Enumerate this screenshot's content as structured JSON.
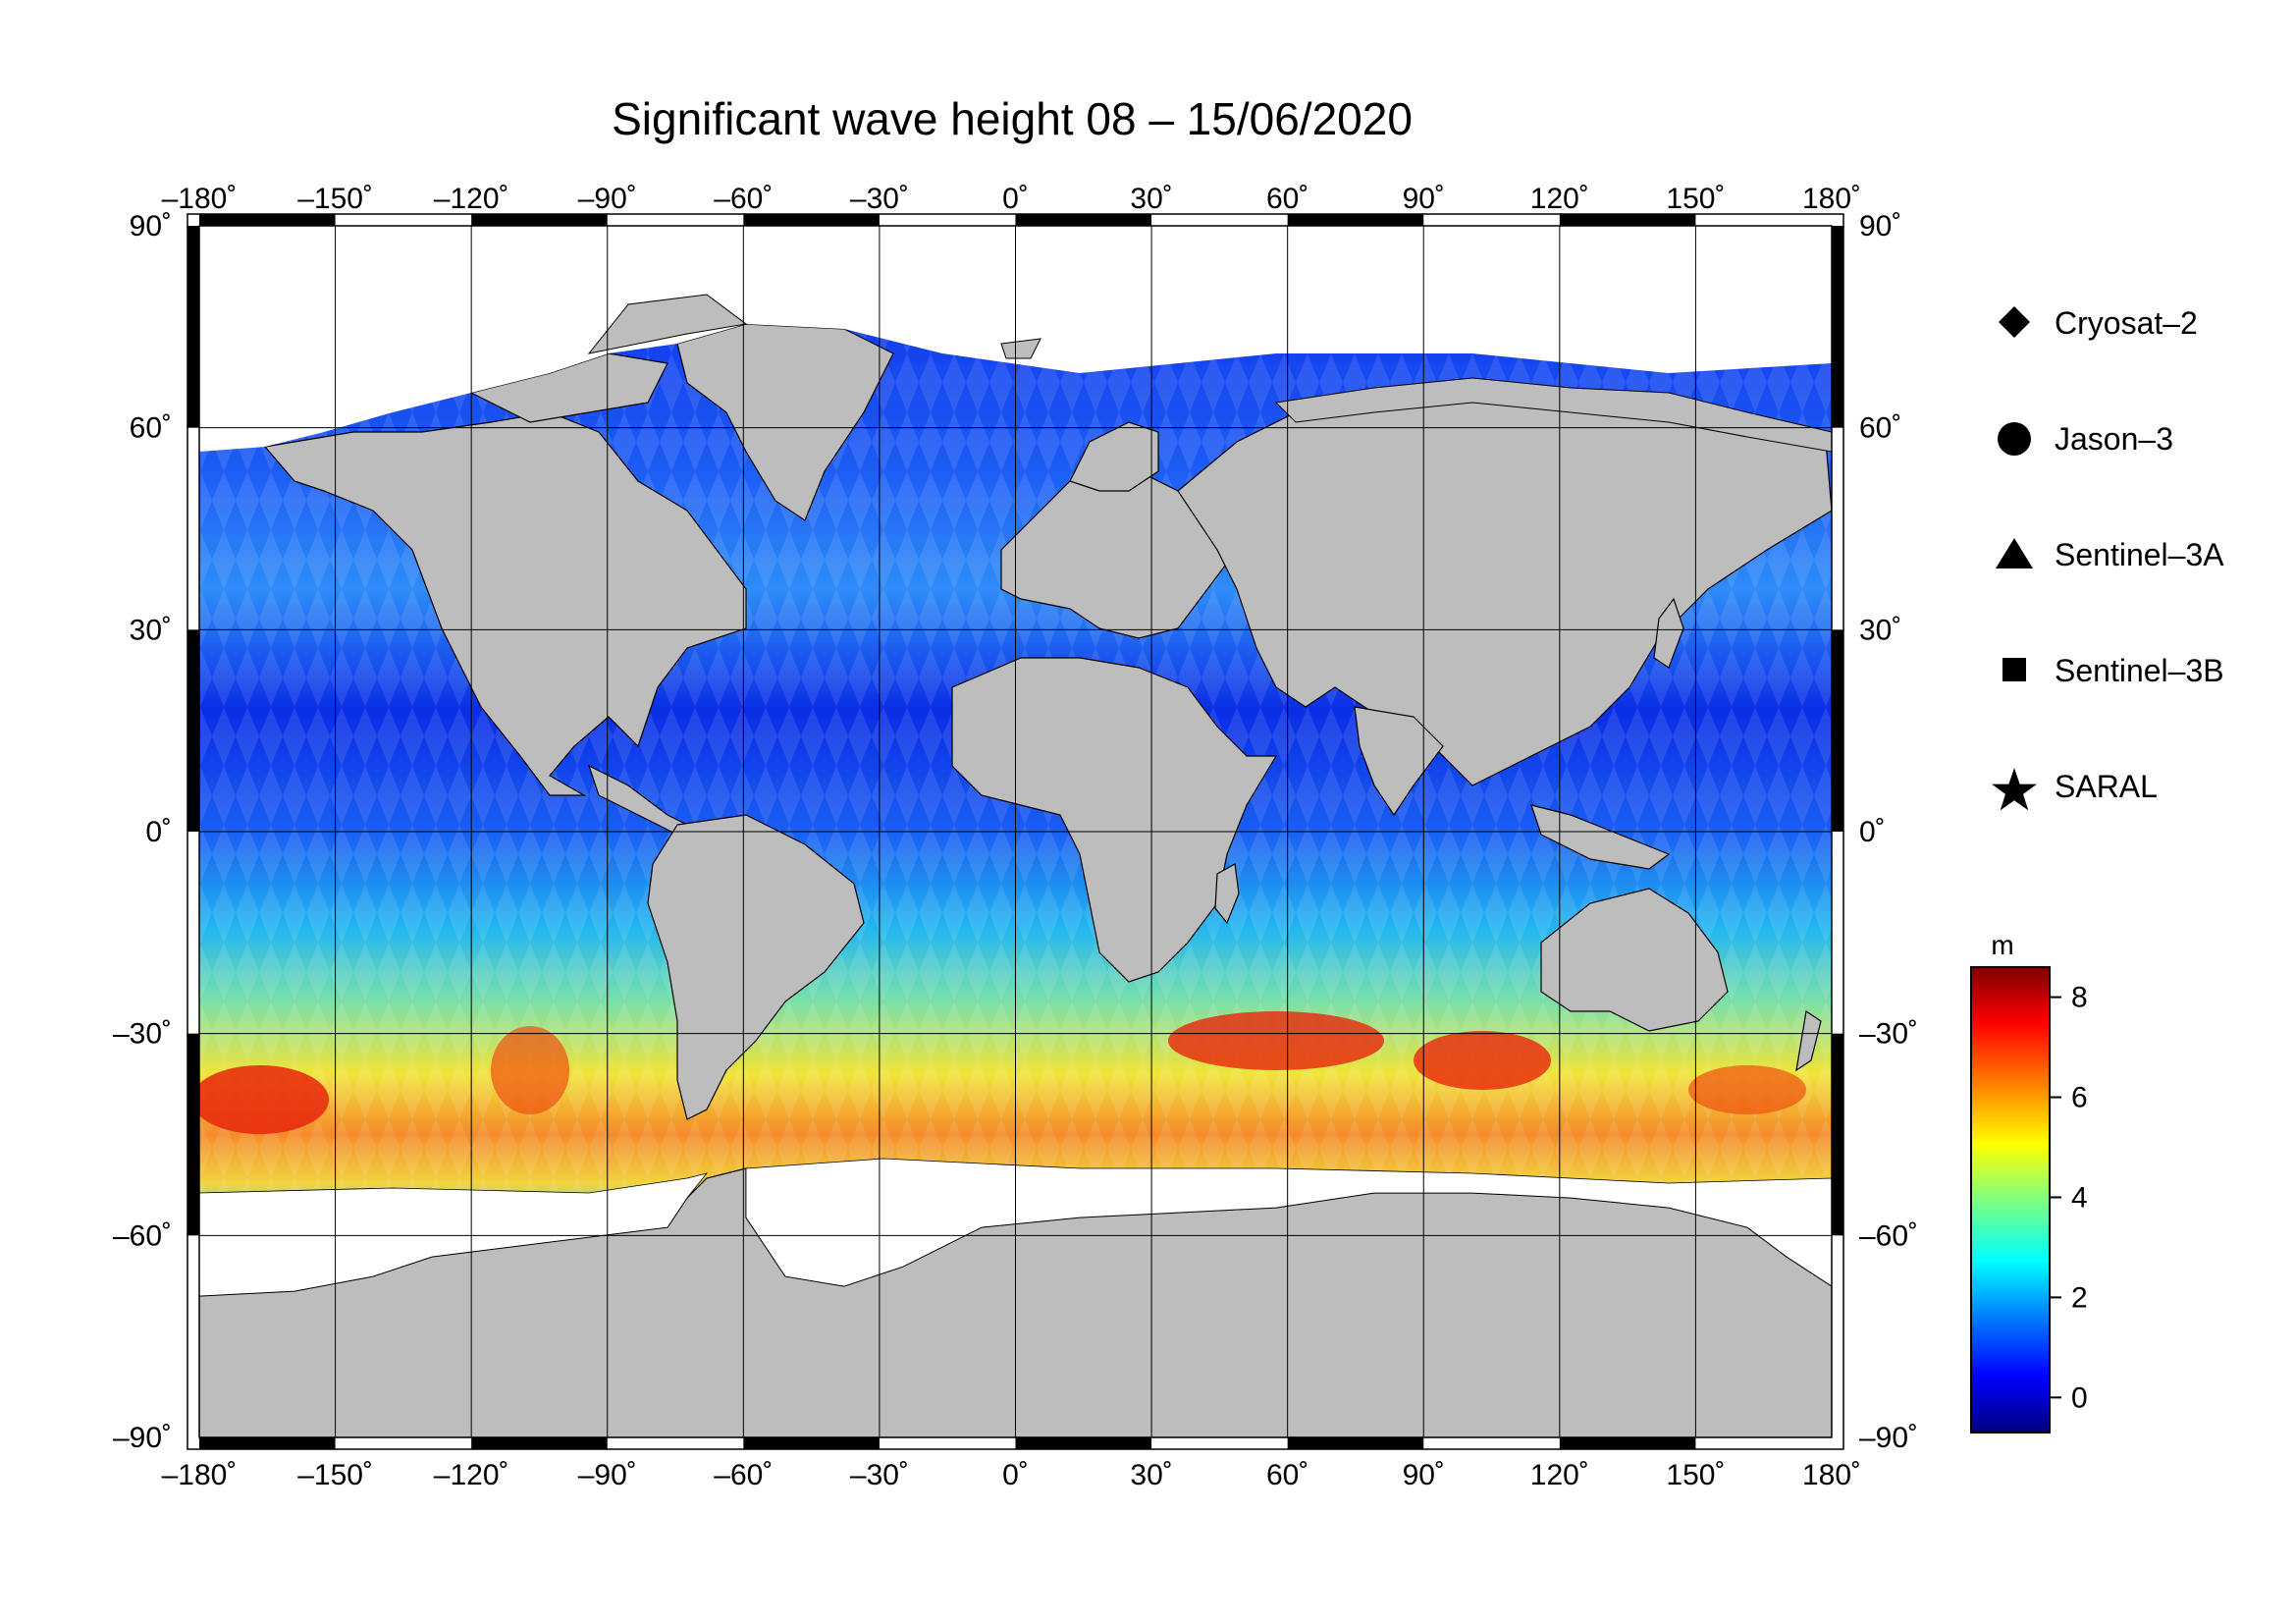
{
  "title": "Significant wave height 08 – 15/06/2020",
  "map": {
    "projection": "plate-carree",
    "lon_ticks": [
      "–180˚",
      "–150˚",
      "–120˚",
      "–90˚",
      "–60˚",
      "–30˚",
      "0˚",
      "30˚",
      "60˚",
      "90˚",
      "120˚",
      "150˚",
      "180˚"
    ],
    "lat_ticks_left": [
      "90˚",
      "60˚",
      "30˚",
      "0˚",
      "–30˚",
      "–60˚",
      "–90˚"
    ],
    "lat_ticks_right": [
      "90˚",
      "60˚",
      "30˚",
      "0˚",
      "–30˚",
      "–60˚",
      "–90˚"
    ],
    "lon_range": [
      -180,
      180
    ],
    "lat_range": [
      -90,
      90
    ],
    "land_color": "#bdbdbd",
    "ice_color": "#ffffff",
    "grid": true
  },
  "legend": {
    "items": [
      {
        "symbol": "diamond",
        "label": "Cryosat–2"
      },
      {
        "symbol": "circle",
        "label": "Jason–3"
      },
      {
        "symbol": "triangle",
        "label": "Sentinel–3A"
      },
      {
        "symbol": "square",
        "label": "Sentinel–3B"
      },
      {
        "symbol": "star",
        "label": "SARAL"
      }
    ]
  },
  "colorbar": {
    "unit": "m",
    "ticks": [
      "8",
      "6",
      "4",
      "2",
      "0"
    ],
    "range": [
      -0.7,
      8.6
    ],
    "colors": [
      "#00007f",
      "#0000ff",
      "#007fff",
      "#00ffff",
      "#7fff7f",
      "#ffff00",
      "#ff7f00",
      "#ff0000",
      "#7f0000"
    ]
  }
}
